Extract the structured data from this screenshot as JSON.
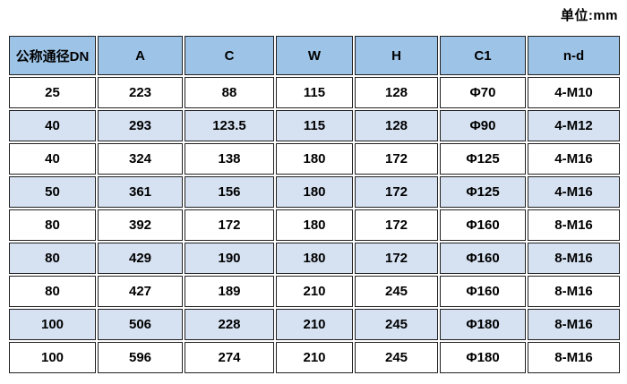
{
  "page": {
    "unit_label": "单位:mm"
  },
  "colors": {
    "header_bg": "#9DC3E6",
    "alt_row_bg": "#D6E2F2",
    "row_bg": "#FFFFFF",
    "border": "#212121",
    "text": "#000000"
  },
  "table": {
    "headers": [
      "公称通径DN",
      "A",
      "C",
      "W",
      "H",
      "C1",
      "n-d"
    ],
    "rows": [
      [
        "25",
        "223",
        "88",
        "115",
        "128",
        "Φ70",
        "4-M10"
      ],
      [
        "40",
        "293",
        "123.5",
        "115",
        "128",
        "Φ90",
        "4-M12"
      ],
      [
        "40",
        "324",
        "138",
        "180",
        "172",
        "Φ125",
        "4-M16"
      ],
      [
        "50",
        "361",
        "156",
        "180",
        "172",
        "Φ125",
        "4-M16"
      ],
      [
        "80",
        "392",
        "172",
        "180",
        "172",
        "Φ160",
        "8-M16"
      ],
      [
        "80",
        "429",
        "190",
        "180",
        "172",
        "Φ160",
        "8-M16"
      ],
      [
        "80",
        "427",
        "189",
        "210",
        "245",
        "Φ160",
        "8-M16"
      ],
      [
        "100",
        "506",
        "228",
        "210",
        "245",
        "Φ180",
        "8-M16"
      ],
      [
        "100",
        "596",
        "274",
        "210",
        "245",
        "Φ180",
        "8-M16"
      ]
    ]
  }
}
